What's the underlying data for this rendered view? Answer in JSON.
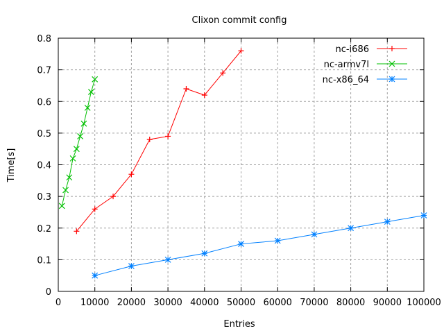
{
  "chart_data": {
    "type": "line",
    "title": "Clixon commit config",
    "xlabel": "Entries",
    "ylabel": "Time[s]",
    "xlim": [
      0,
      100000
    ],
    "ylim": [
      0,
      0.8
    ],
    "xticks": [
      0,
      10000,
      20000,
      30000,
      40000,
      50000,
      60000,
      70000,
      80000,
      90000,
      100000
    ],
    "yticks": [
      0,
      0.1,
      0.2,
      0.3,
      0.4,
      0.5,
      0.6,
      0.7,
      0.8
    ],
    "grid": true,
    "legend_position": "top-right",
    "series": [
      {
        "name": "nc-i686",
        "color": "#ff0000",
        "marker": "plus",
        "x": [
          5000,
          10000,
          15000,
          20000,
          25000,
          30000,
          35000,
          40000,
          45000,
          50000
        ],
        "y": [
          0.19,
          0.26,
          0.3,
          0.37,
          0.48,
          0.49,
          0.64,
          0.62,
          0.69,
          0.76
        ]
      },
      {
        "name": "nc-armv7l",
        "color": "#00c000",
        "marker": "cross",
        "x": [
          1000,
          2000,
          3000,
          4000,
          5000,
          6000,
          7000,
          8000,
          9000,
          10000
        ],
        "y": [
          0.27,
          0.32,
          0.36,
          0.42,
          0.45,
          0.49,
          0.53,
          0.58,
          0.63,
          0.67
        ]
      },
      {
        "name": "nc-x86_64",
        "color": "#0080ff",
        "marker": "star",
        "x": [
          10000,
          20000,
          30000,
          40000,
          50000,
          60000,
          70000,
          80000,
          90000,
          100000
        ],
        "y": [
          0.05,
          0.08,
          0.1,
          0.12,
          0.15,
          0.16,
          0.18,
          0.2,
          0.22,
          0.24
        ]
      }
    ]
  }
}
